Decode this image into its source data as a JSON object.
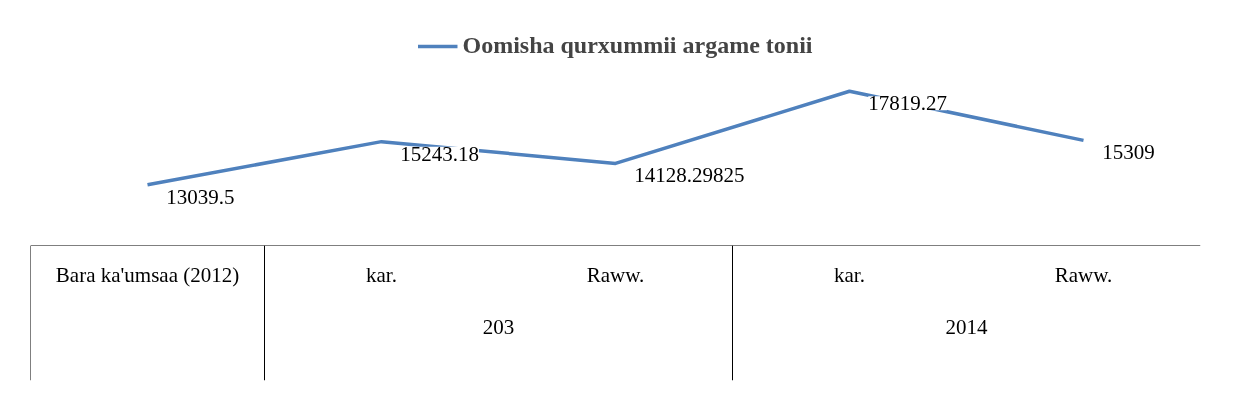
{
  "chart_data": {
    "type": "line",
    "categories": [
      "Bara ka'umsaa (2012)",
      "kar.",
      "Raww.",
      "kar.",
      "Raww."
    ],
    "series": [
      {
        "name": "Oomisha qurxummii argame tonii",
        "color": "#4f81bd",
        "values": [
          13039.5,
          15243.18,
          14128.29825,
          17819.27,
          15309
        ]
      }
    ],
    "annotations": [
      "203",
      "2014"
    ],
    "data_labels": true,
    "legend": "top",
    "line_style": "solid"
  }
}
